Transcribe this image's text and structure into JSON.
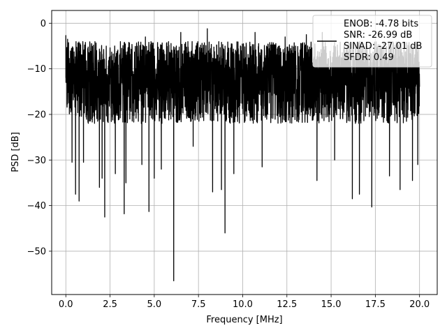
{
  "chart_data": {
    "type": "line",
    "title": "",
    "xlabel": "Frequency [MHz]",
    "ylabel": "PSD [dB]",
    "xlim": [
      -0.8,
      21.0
    ],
    "ylim": [
      -59.5,
      2.8
    ],
    "x_ticks": [
      0.0,
      2.5,
      5.0,
      7.5,
      10.0,
      12.5,
      15.0,
      17.5,
      20.0
    ],
    "x_tick_labels": [
      "0.0",
      "2.5",
      "5.0",
      "7.5",
      "10.0",
      "12.5",
      "15.0",
      "17.5",
      "20.0"
    ],
    "y_ticks": [
      0,
      -10,
      -20,
      -30,
      -40,
      -50
    ],
    "y_tick_labels": [
      "0",
      "−10",
      "−20",
      "−30",
      "−40",
      "−50"
    ],
    "grid": true,
    "legend_position": "top-right",
    "legend_lines": [
      "ENOB: -4.78 bits",
      "SNR: -26.99 dB",
      "SINAD: -27.01 dB",
      "SFDR: 0.49"
    ],
    "line_color": "#000000",
    "x_range": [
      0.0,
      20.0
    ],
    "typical_band_db": [
      -22,
      -4
    ],
    "notable_points": [
      {
        "x": 0.0,
        "y": -2.7
      },
      {
        "x": 0.1,
        "y": -3.5
      },
      {
        "x": 0.35,
        "y": -30.5
      },
      {
        "x": 0.55,
        "y": -37.5
      },
      {
        "x": 0.75,
        "y": -39.0
      },
      {
        "x": 1.0,
        "y": -30.5
      },
      {
        "x": 1.9,
        "y": -36.0
      },
      {
        "x": 2.05,
        "y": -34.0
      },
      {
        "x": 2.2,
        "y": -42.5
      },
      {
        "x": 2.8,
        "y": -33.0
      },
      {
        "x": 3.3,
        "y": -41.8
      },
      {
        "x": 3.4,
        "y": -35.0
      },
      {
        "x": 4.3,
        "y": -31.0
      },
      {
        "x": 4.7,
        "y": -41.3
      },
      {
        "x": 5.0,
        "y": -34.0
      },
      {
        "x": 5.4,
        "y": -32.0
      },
      {
        "x": 6.1,
        "y": -56.5
      },
      {
        "x": 7.2,
        "y": -27.0
      },
      {
        "x": 8.3,
        "y": -37.0
      },
      {
        "x": 8.8,
        "y": -36.5
      },
      {
        "x": 9.0,
        "y": -46.0
      },
      {
        "x": 9.5,
        "y": -33.0
      },
      {
        "x": 11.1,
        "y": -31.5
      },
      {
        "x": 14.2,
        "y": -34.5
      },
      {
        "x": 15.2,
        "y": -30.0
      },
      {
        "x": 16.2,
        "y": -38.5
      },
      {
        "x": 16.6,
        "y": -37.5
      },
      {
        "x": 17.3,
        "y": -40.3
      },
      {
        "x": 18.3,
        "y": -33.5
      },
      {
        "x": 18.9,
        "y": -36.5
      },
      {
        "x": 19.6,
        "y": -34.5
      },
      {
        "x": 19.9,
        "y": -31.0
      },
      {
        "x": 1.5,
        "y": -8.5
      },
      {
        "x": 4.5,
        "y": -3.0
      },
      {
        "x": 6.5,
        "y": -2.0
      },
      {
        "x": 8.0,
        "y": -1.2
      },
      {
        "x": 10.7,
        "y": -2.0
      },
      {
        "x": 12.4,
        "y": -3.0
      },
      {
        "x": 13.6,
        "y": -2.5
      },
      {
        "x": 14.5,
        "y": -2.0
      }
    ]
  }
}
